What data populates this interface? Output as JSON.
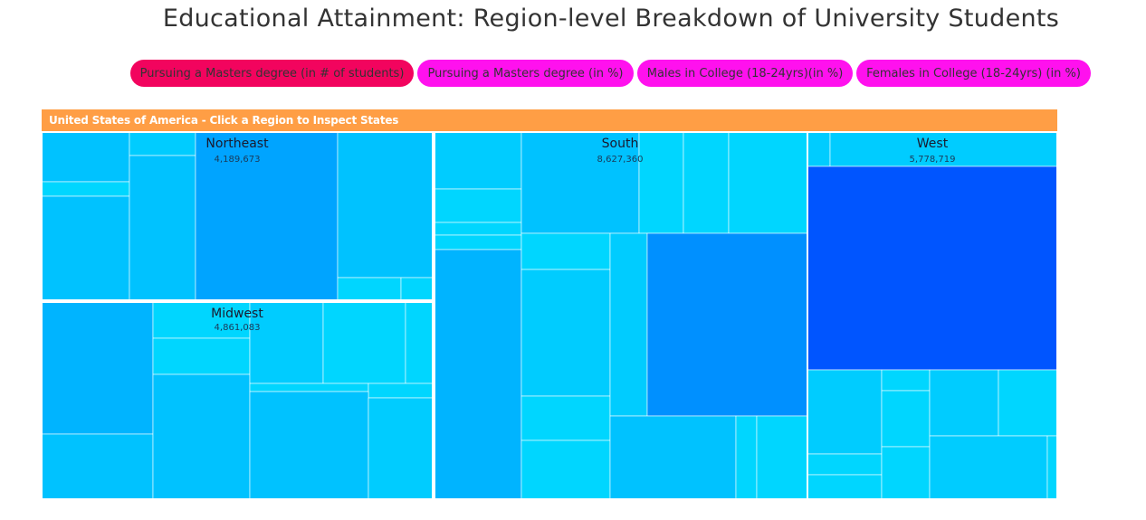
{
  "title": "Educational Attainment: Region-level Breakdown of University Students",
  "tabs": [
    {
      "label": "Pursuing a Masters degree (in # of students)",
      "active": true
    },
    {
      "label": "Pursuing a Masters degree (in %)",
      "active": false
    },
    {
      "label": "Males in College (18-24yrs)(in %)",
      "active": false
    },
    {
      "label": "Females in College (18-24yrs) (in %)",
      "active": false
    }
  ],
  "header": "United States of America - Click a Region to Inspect States",
  "colors": {
    "active_tab": "#f2045e",
    "inactive_tab": "#ff11ee",
    "header_bar": "#ff9e45",
    "cell_light": "#00d6ff",
    "cell_dark": "#0055ff",
    "cell_border": "#ffffff",
    "region_border": "#ffffff"
  },
  "chart_data": {
    "type": "treemap",
    "title": "United States of America - Click a Region to Inspect States",
    "metric": "Pursuing a Masters degree (in # of students)",
    "regions": [
      {
        "name": "South",
        "value": "8,627,360",
        "total": 8627360
      },
      {
        "name": "West",
        "value": "5,778,719",
        "total": 5778719
      },
      {
        "name": "Midwest",
        "value": "4,861,083",
        "total": 4861083
      },
      {
        "name": "Northeast",
        "value": "4,189,673",
        "total": 4189673
      }
    ]
  }
}
